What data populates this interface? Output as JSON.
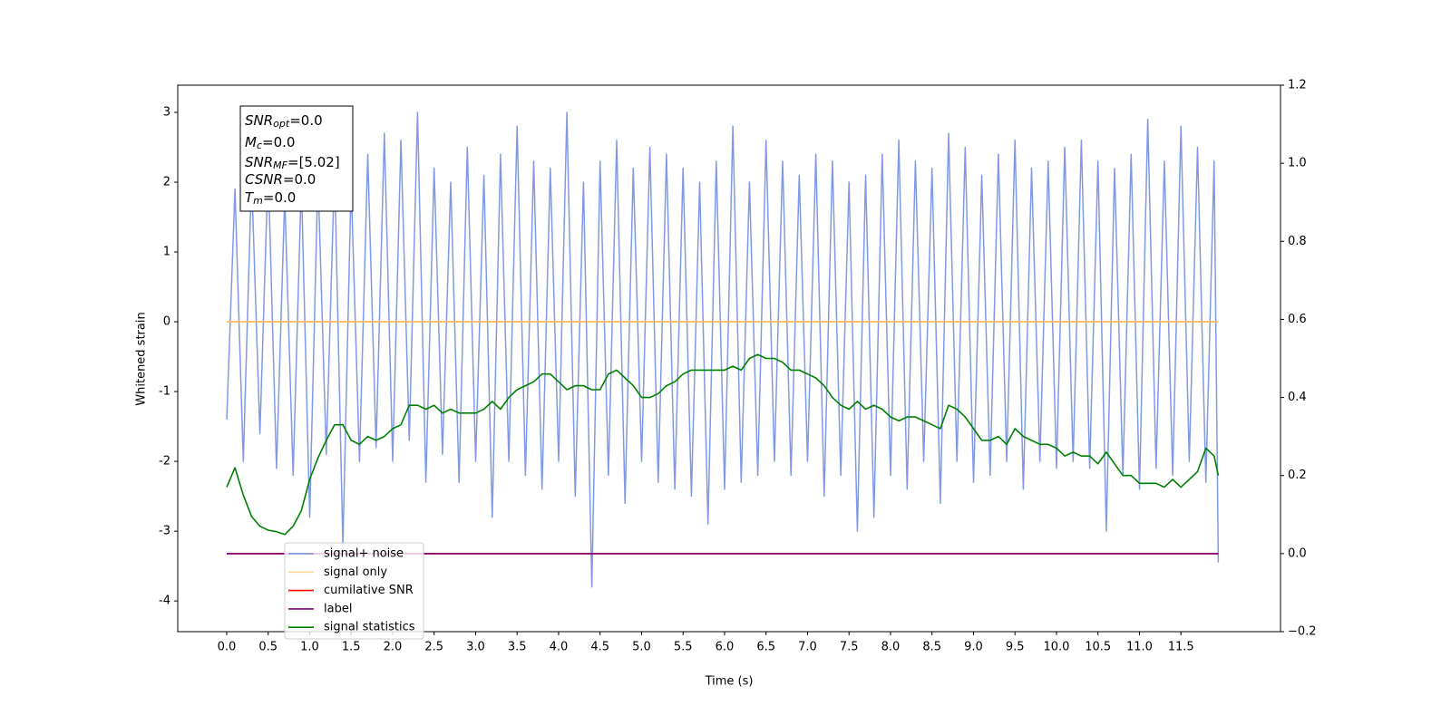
{
  "chart_data": {
    "type": "line",
    "xlabel": "Time (s)",
    "ylabel": "Whitened strain",
    "annotations": [
      {
        "symbol": "SNR",
        "subscript": "opt",
        "text": "=0.0"
      },
      {
        "symbol": "M",
        "subscript": "c",
        "text": "=0.0"
      },
      {
        "symbol": "SNR",
        "subscript": "MF",
        "text": "=[5.02]"
      },
      {
        "symbol": "CSNR",
        "subscript": "",
        "text": "=0.0"
      },
      {
        "symbol": "T",
        "subscript": "m",
        "text": "=0.0"
      }
    ],
    "legend": "lower left",
    "xlim": [
      -0.59,
      12.7
    ],
    "ylim": [
      -4.44,
      3.39
    ],
    "y2lim": [
      -0.2,
      1.2
    ],
    "xticks": [
      {
        "value": 0,
        "label": "0.0"
      },
      {
        "value": 0.5,
        "label": "0.5"
      },
      {
        "value": 1,
        "label": "1.0"
      },
      {
        "value": 1.5,
        "label": "1.5"
      },
      {
        "value": 2,
        "label": "2.0"
      },
      {
        "value": 2.5,
        "label": "2.5"
      },
      {
        "value": 3,
        "label": "3.0"
      },
      {
        "value": 3.5,
        "label": "3.5"
      },
      {
        "value": 4,
        "label": "4.0"
      },
      {
        "value": 4.5,
        "label": "4.5"
      },
      {
        "value": 5,
        "label": "5.0"
      },
      {
        "value": 5.5,
        "label": "5.5"
      },
      {
        "value": 6,
        "label": "6.0"
      },
      {
        "value": 6.5,
        "label": "6.5"
      },
      {
        "value": 7,
        "label": "7.0"
      },
      {
        "value": 7.5,
        "label": "7.5"
      },
      {
        "value": 8,
        "label": "8.0"
      },
      {
        "value": 8.5,
        "label": "8.5"
      },
      {
        "value": 9,
        "label": "9.0"
      },
      {
        "value": 9.5,
        "label": "9.5"
      },
      {
        "value": 10,
        "label": "10.0"
      },
      {
        "value": 10.5,
        "label": "10.5"
      },
      {
        "value": 11,
        "label": "11.0"
      },
      {
        "value": 11.5,
        "label": "11.5"
      }
    ],
    "yticks": [
      -4,
      -3,
      -2,
      -1,
      0,
      1,
      2,
      3
    ],
    "y2ticks": [
      {
        "value": -0.2,
        "label": "−0.2"
      },
      {
        "value": 0,
        "label": "0.0"
      },
      {
        "value": 0.2,
        "label": "0.2"
      },
      {
        "value": 0.4,
        "label": "0.4"
      },
      {
        "value": 0.6,
        "label": "0.6"
      },
      {
        "value": 0.8,
        "label": "0.8"
      },
      {
        "value": 1,
        "label": "1.0"
      },
      {
        "value": 1.2,
        "label": "1.2"
      }
    ],
    "x": [
      0,
      0.1,
      0.2,
      0.3,
      0.4,
      0.5,
      0.6,
      0.7,
      0.8,
      0.9,
      1,
      1.1,
      1.2,
      1.3,
      1.4,
      1.5,
      1.6,
      1.7,
      1.8,
      1.9,
      2,
      2.1,
      2.2,
      2.3,
      2.4,
      2.5,
      2.6,
      2.7,
      2.8,
      2.9,
      3,
      3.1,
      3.2,
      3.3,
      3.4,
      3.5,
      3.6,
      3.7,
      3.8,
      3.9,
      4,
      4.1,
      4.2,
      4.3,
      4.4,
      4.5,
      4.6,
      4.7,
      4.8,
      4.9,
      5,
      5.1,
      5.2,
      5.3,
      5.4,
      5.5,
      5.6,
      5.7,
      5.8,
      5.9,
      6,
      6.1,
      6.2,
      6.3,
      6.4,
      6.5,
      6.6,
      6.7,
      6.8,
      6.9,
      7,
      7.1,
      7.2,
      7.3,
      7.4,
      7.5,
      7.6,
      7.7,
      7.8,
      7.9,
      8,
      8.1,
      8.2,
      8.3,
      8.4,
      8.5,
      8.6,
      8.7,
      8.8,
      8.9,
      9,
      9.1,
      9.2,
      9.3,
      9.4,
      9.5,
      9.6,
      9.7,
      9.8,
      9.9,
      10,
      10.1,
      10.2,
      10.3,
      10.4,
      10.5,
      10.6,
      10.7,
      10.8,
      10.9,
      11,
      11.1,
      11.2,
      11.3,
      11.4,
      11.5,
      11.6,
      11.7,
      11.8,
      11.9,
      11.95
    ],
    "series": [
      {
        "name": "signal+ noise",
        "color": "#7893e6",
        "axis": "y",
        "values": [
          -1.4,
          1.9,
          -2.0,
          2.1,
          -1.6,
          2.2,
          -2.1,
          1.8,
          -2.2,
          2.0,
          -2.8,
          2.1,
          -1.9,
          2.2,
          -3.2,
          2.0,
          -2.0,
          2.4,
          -1.8,
          2.7,
          -2.0,
          2.6,
          -1.7,
          3.0,
          -2.3,
          2.2,
          -1.9,
          2.0,
          -2.3,
          2.5,
          -2.0,
          2.1,
          -2.8,
          2.4,
          -2.0,
          2.8,
          -2.2,
          2.3,
          -2.4,
          2.2,
          -2.0,
          3.0,
          -2.5,
          2.0,
          -3.8,
          2.3,
          -2.2,
          2.6,
          -2.6,
          2.2,
          -2.0,
          2.5,
          -2.3,
          2.4,
          -2.4,
          2.2,
          -2.5,
          2.0,
          -2.9,
          2.3,
          -2.4,
          2.8,
          -2.3,
          2.0,
          -2.2,
          2.6,
          -2.0,
          2.3,
          -2.2,
          2.1,
          -2.0,
          2.4,
          -2.5,
          2.3,
          -2.2,
          2.0,
          -3.0,
          2.1,
          -2.8,
          2.4,
          -2.2,
          2.6,
          -2.4,
          2.3,
          -2.0,
          2.2,
          -2.6,
          2.7,
          -2.0,
          2.5,
          -2.3,
          2.1,
          -2.2,
          2.4,
          -2.0,
          2.6,
          -2.4,
          2.2,
          -2.0,
          2.3,
          -2.1,
          2.5,
          -2.0,
          2.6,
          -2.1,
          2.3,
          -3.0,
          2.2,
          -2.2,
          2.4,
          -2.4,
          2.9,
          -2.1,
          2.3,
          -2.2,
          2.8,
          -2.0,
          2.5,
          -2.3,
          2.3,
          -3.45
        ]
      },
      {
        "name": "signal only",
        "color": "#ffb74d",
        "axis": "y",
        "x": [
          0,
          11.95
        ],
        "values": [
          0,
          0
        ]
      },
      {
        "name": "cumilative SNR",
        "color": "#ff0000",
        "axis": "y2",
        "x": [
          0,
          11.95
        ],
        "values": [
          0,
          0
        ]
      },
      {
        "name": "label",
        "color": "#800080",
        "axis": "y2",
        "x": [
          0,
          11.95
        ],
        "values": [
          0,
          0
        ]
      },
      {
        "name": "signal statistics",
        "color": "#008000",
        "axis": "y2",
        "values": [
          0.17,
          0.22,
          0.15,
          0.095,
          0.07,
          0.06,
          0.056,
          0.049,
          0.07,
          0.11,
          0.19,
          0.245,
          0.29,
          0.33,
          0.33,
          0.29,
          0.28,
          0.3,
          0.29,
          0.3,
          0.32,
          0.33,
          0.38,
          0.38,
          0.37,
          0.38,
          0.36,
          0.37,
          0.36,
          0.36,
          0.36,
          0.37,
          0.39,
          0.37,
          0.4,
          0.42,
          0.43,
          0.44,
          0.46,
          0.46,
          0.44,
          0.42,
          0.43,
          0.43,
          0.42,
          0.42,
          0.46,
          0.47,
          0.45,
          0.43,
          0.4,
          0.4,
          0.41,
          0.43,
          0.44,
          0.46,
          0.47,
          0.47,
          0.47,
          0.47,
          0.47,
          0.48,
          0.47,
          0.5,
          0.51,
          0.5,
          0.5,
          0.49,
          0.47,
          0.47,
          0.46,
          0.45,
          0.43,
          0.4,
          0.38,
          0.37,
          0.39,
          0.37,
          0.38,
          0.37,
          0.35,
          0.34,
          0.35,
          0.35,
          0.34,
          0.33,
          0.32,
          0.38,
          0.37,
          0.35,
          0.32,
          0.29,
          0.29,
          0.3,
          0.28,
          0.32,
          0.3,
          0.29,
          0.28,
          0.28,
          0.27,
          0.25,
          0.26,
          0.25,
          0.25,
          0.23,
          0.26,
          0.23,
          0.2,
          0.2,
          0.18,
          0.18,
          0.18,
          0.17,
          0.19,
          0.17,
          0.19,
          0.21,
          0.27,
          0.25,
          0.2
        ]
      }
    ]
  }
}
